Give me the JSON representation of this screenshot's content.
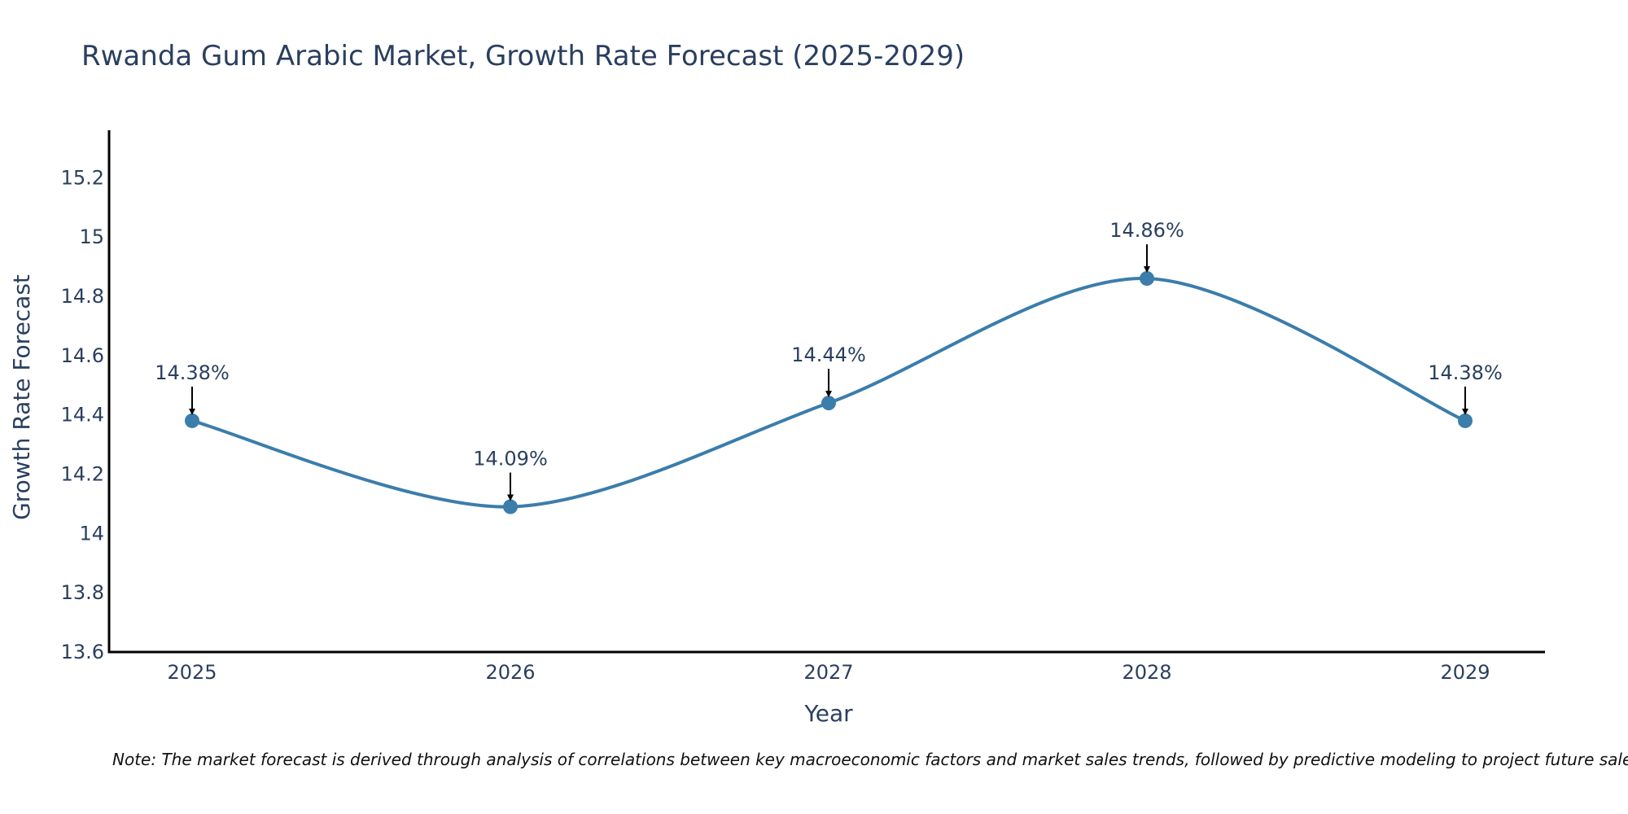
{
  "chart_data": {
    "type": "line",
    "title": "Rwanda Gum Arabic Market, Growth Rate Forecast (2025-2029)",
    "xlabel": "Year",
    "ylabel": "Growth Rate Forecast",
    "categories": [
      "2025",
      "2026",
      "2027",
      "2028",
      "2029"
    ],
    "values": [
      14.38,
      14.09,
      14.44,
      14.86,
      14.38
    ],
    "data_labels": [
      "14.38%",
      "14.09%",
      "14.44%",
      "14.86%",
      "14.38%"
    ],
    "ylim": [
      13.6,
      15.36
    ],
    "yticks": [
      13.6,
      13.8,
      14,
      14.2,
      14.4,
      14.6,
      14.8,
      15,
      15.2
    ],
    "ytick_labels": [
      "13.6",
      "13.8",
      "14",
      "14.2",
      "14.4",
      "14.6",
      "14.8",
      "15",
      "15.2"
    ],
    "grid": false,
    "line_color": "#3b7dab",
    "annotation_arrow_color": "#000000",
    "note": "Note: The market forecast is derived through analysis of correlations between key macroeconomic factors and market sales trends, followed by predictive modeling to project future sales"
  }
}
